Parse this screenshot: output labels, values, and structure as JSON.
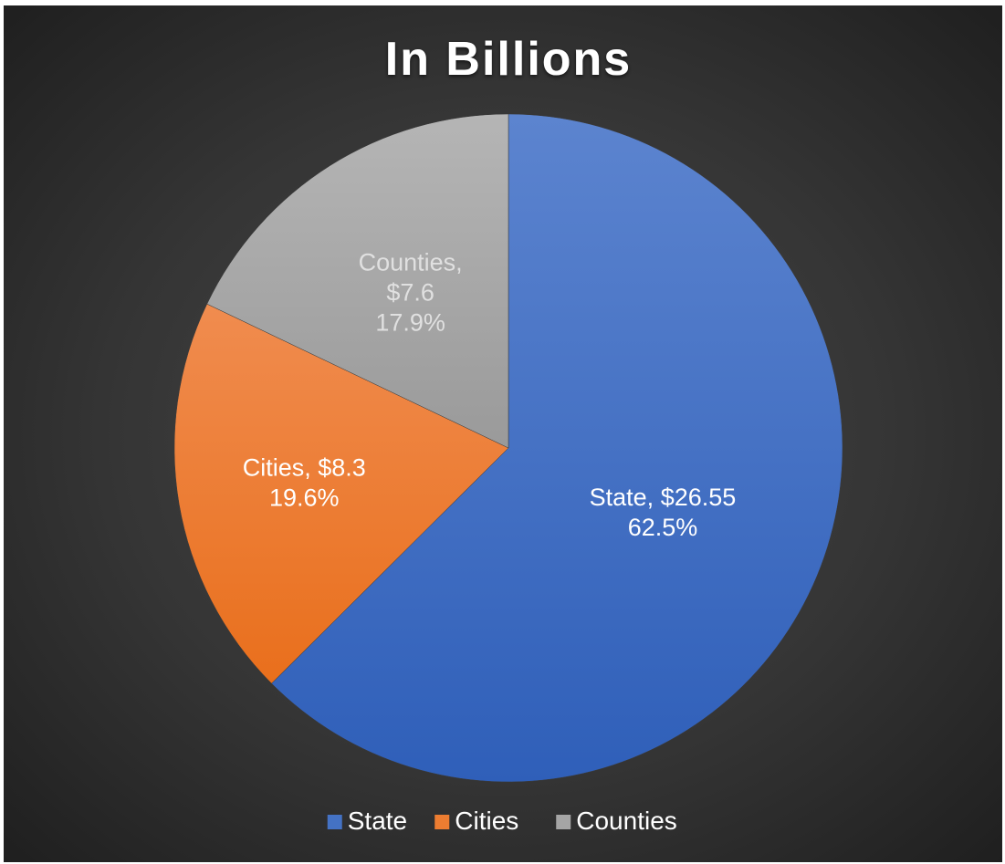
{
  "chart_data": {
    "type": "pie",
    "title": "In Billions",
    "legend_position": "bottom",
    "slices": [
      {
        "name": "State",
        "value": 26.55,
        "value_label": "$26.55",
        "percent_label": "62.5%",
        "color": "#4472c4"
      },
      {
        "name": "Cities",
        "value": 8.3,
        "value_label": "$8.3",
        "percent_label": "19.6%",
        "color": "#ed7d31"
      },
      {
        "name": "Counties",
        "value": 7.6,
        "value_label": "$7.6",
        "percent_label": "17.9%",
        "color": "#a5a5a5"
      }
    ]
  }
}
